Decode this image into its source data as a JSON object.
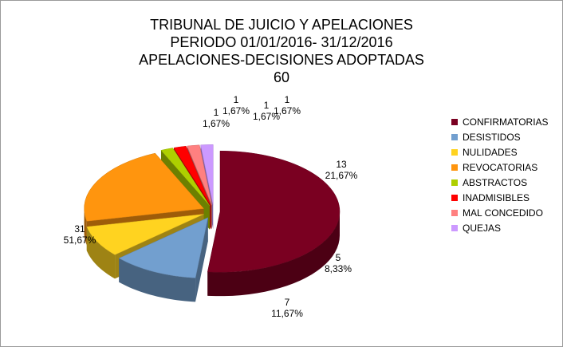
{
  "chart_data": {
    "type": "pie",
    "title_lines": [
      "TRIBUNAL DE JUICIO Y APELACIONES",
      "PERIODO 01/01/2016- 31/12/2016",
      "APELACIONES-DECISIONES ADOPTADAS",
      "60"
    ],
    "total": 60,
    "legend_position": "right",
    "slices": [
      {
        "name": "CONFIRMATORIAS",
        "value": 31,
        "percent": "51,67%",
        "color": "#7a0021"
      },
      {
        "name": "DESISTIDOS",
        "value": 7,
        "percent": "11,67%",
        "color": "#729fcf"
      },
      {
        "name": "NULIDADES",
        "value": 5,
        "percent": "8,33%",
        "color": "#ffd320"
      },
      {
        "name": "REVOCATORIAS",
        "value": 13,
        "percent": "21,67%",
        "color": "#ff950e"
      },
      {
        "name": "ABSTRACTOS",
        "value": 1,
        "percent": "1,67%",
        "color": "#aecf00"
      },
      {
        "name": "INADMISIBLES",
        "value": 1,
        "percent": "1,67%",
        "color": "#ff0000"
      },
      {
        "name": "MAL CONCEDIDO",
        "value": 1,
        "percent": "1,67%",
        "color": "#ff8080"
      },
      {
        "name": "QUEJAS",
        "value": 1,
        "percent": "1,67%",
        "color": "#cc99ff"
      }
    ]
  }
}
